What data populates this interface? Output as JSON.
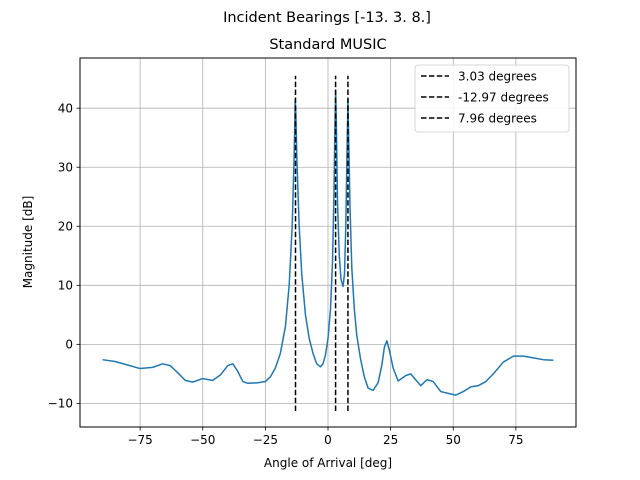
{
  "figure": {
    "suptitle": "Incident Bearings [-13.   3.   8.]"
  },
  "chart_data": {
    "type": "line",
    "title": "Standard MUSIC",
    "xlabel": "Angle of Arrival [deg]",
    "ylabel": "Magnitude [dB]",
    "xlim": [
      -99,
      99
    ],
    "ylim": [
      -14,
      48.5
    ],
    "xticks": [
      -75,
      -50,
      -25,
      0,
      25,
      50,
      75
    ],
    "yticks": [
      -10,
      0,
      10,
      20,
      30,
      40
    ],
    "grid": true,
    "legend_position": "top-right",
    "series": [
      {
        "name": "",
        "color": "#1f77b4",
        "points": [
          [
            -90,
            -2.6
          ],
          [
            -85,
            -2.9
          ],
          [
            -80,
            -3.5
          ],
          [
            -75,
            -4.1
          ],
          [
            -70,
            -3.9
          ],
          [
            -66,
            -3.3
          ],
          [
            -63,
            -3.6
          ],
          [
            -60,
            -4.8
          ],
          [
            -57,
            -6.1
          ],
          [
            -54,
            -6.4
          ],
          [
            -50,
            -5.8
          ],
          [
            -46,
            -6.1
          ],
          [
            -43,
            -5.2
          ],
          [
            -40,
            -3.6
          ],
          [
            -38,
            -3.3
          ],
          [
            -36,
            -4.6
          ],
          [
            -34,
            -6.3
          ],
          [
            -32,
            -6.6
          ],
          [
            -28,
            -6.5
          ],
          [
            -25,
            -6.3
          ],
          [
            -23,
            -5.5
          ],
          [
            -21,
            -4.0
          ],
          [
            -19,
            -1.5
          ],
          [
            -17,
            3.0
          ],
          [
            -15.5,
            10.0
          ],
          [
            -14.3,
            20.0
          ],
          [
            -13.5,
            32.0
          ],
          [
            -13.1,
            41.5
          ],
          [
            -12.9,
            40.0
          ],
          [
            -12.4,
            31.0
          ],
          [
            -11.5,
            20.0
          ],
          [
            -10.5,
            12.0
          ],
          [
            -9,
            5.0
          ],
          [
            -7.5,
            1.0
          ],
          [
            -6,
            -1.5
          ],
          [
            -4.5,
            -3.3
          ],
          [
            -3,
            -3.8
          ],
          [
            -2,
            -3.3
          ],
          [
            -1,
            -1.8
          ],
          [
            0,
            1.0
          ],
          [
            1,
            6.0
          ],
          [
            1.8,
            14.0
          ],
          [
            2.4,
            26.0
          ],
          [
            2.8,
            38.0
          ],
          [
            3.05,
            43.0
          ],
          [
            3.3,
            38.0
          ],
          [
            3.8,
            24.0
          ],
          [
            4.5,
            15.0
          ],
          [
            5.2,
            11.0
          ],
          [
            6.0,
            9.8
          ],
          [
            6.6,
            12.0
          ],
          [
            7.1,
            20.0
          ],
          [
            7.6,
            33.0
          ],
          [
            7.95,
            41.5
          ],
          [
            8.3,
            34.0
          ],
          [
            8.8,
            23.0
          ],
          [
            9.5,
            13.0
          ],
          [
            10.5,
            6.0
          ],
          [
            11.5,
            1.5
          ],
          [
            13,
            -2.5
          ],
          [
            14.5,
            -5.5
          ],
          [
            16,
            -7.4
          ],
          [
            18,
            -7.8
          ],
          [
            20,
            -6.5
          ],
          [
            21.5,
            -3.5
          ],
          [
            22.5,
            -0.5
          ],
          [
            23.5,
            0.6
          ],
          [
            24.5,
            -1.0
          ],
          [
            26,
            -4.0
          ],
          [
            28,
            -6.2
          ],
          [
            31,
            -5.3
          ],
          [
            33,
            -5.0
          ],
          [
            35,
            -6.0
          ],
          [
            37,
            -7.0
          ],
          [
            39.5,
            -6.0
          ],
          [
            42,
            -6.3
          ],
          [
            45,
            -8.0
          ],
          [
            48,
            -8.3
          ],
          [
            51,
            -8.6
          ],
          [
            54,
            -8.0
          ],
          [
            57,
            -7.2
          ],
          [
            60,
            -7.0
          ],
          [
            63,
            -6.3
          ],
          [
            66,
            -5.0
          ],
          [
            70,
            -3.0
          ],
          [
            74,
            -2.0
          ],
          [
            78,
            -2.0
          ],
          [
            82,
            -2.3
          ],
          [
            86,
            -2.6
          ],
          [
            90,
            -2.7
          ]
        ]
      }
    ],
    "vlines": [
      {
        "x": 3.03,
        "label": "3.03 degrees",
        "ymin": -11.3,
        "ymax": 45.5
      },
      {
        "x": -12.97,
        "label": "-12.97 degrees",
        "ymin": -11.3,
        "ymax": 45.5
      },
      {
        "x": 7.96,
        "label": "7.96 degrees",
        "ymin": -11.3,
        "ymax": 45.5
      }
    ]
  }
}
